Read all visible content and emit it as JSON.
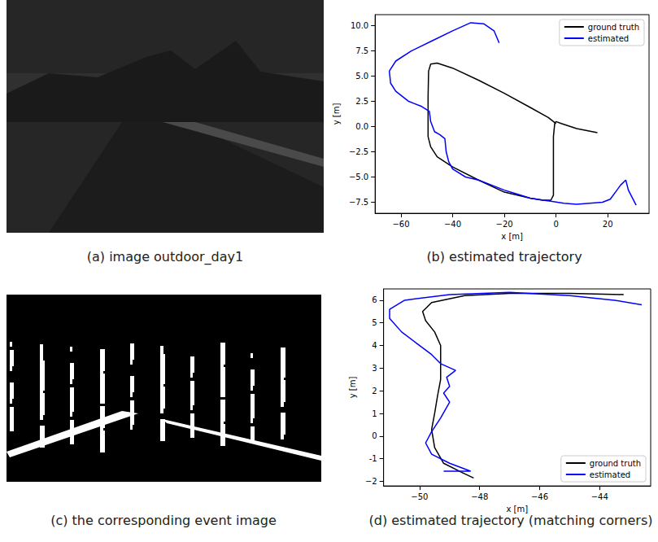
{
  "images": [
    {
      "caption": "(a) image outdoor_day1"
    },
    {
      "caption": "(c) the corresponding event image"
    }
  ],
  "chart_data": [
    {
      "type": "line",
      "caption": "(b) estimated trajectory",
      "xlabel": "x [m]",
      "ylabel": "y [m]",
      "xlim": [
        -70,
        36
      ],
      "ylim": [
        -8.6,
        11.1
      ],
      "xticks": [
        {
          "value": -60,
          "label": "−60"
        },
        {
          "value": -40,
          "label": "−40"
        },
        {
          "value": -20,
          "label": "−20"
        },
        0,
        20
      ],
      "yticks": [
        {
          "value": -7.5,
          "label": "−7.5"
        },
        {
          "value": -5,
          "label": "−5.0"
        },
        {
          "value": -2.5,
          "label": "−2.5"
        },
        {
          "value": 0,
          "label": "0.0"
        },
        2.5,
        {
          "value": 5,
          "label": "5.0"
        },
        7.5,
        {
          "value": 10,
          "label": "10.0"
        }
      ],
      "grid": false,
      "legend": "upper right",
      "series": [
        {
          "name": "ground truth",
          "color": "#000000",
          "x": [
            16,
            8,
            2,
            0,
            -0.5,
            -1,
            -1,
            -1,
            -1,
            -2,
            -5,
            -10,
            -20,
            -30,
            -40,
            -46,
            -48.5,
            -49.5,
            -49.5,
            -49.5,
            -49.3,
            -48.5,
            -46,
            -40,
            -30,
            -20,
            -10,
            -3,
            -1,
            0
          ],
          "y": [
            -0.6,
            -0.2,
            0.3,
            0.5,
            0.3,
            -1,
            -3,
            -5,
            -6.8,
            -7.3,
            -7.3,
            -7.1,
            -6.5,
            -5.3,
            -4.0,
            -3.0,
            -2,
            -1,
            1,
            3,
            5.5,
            6.2,
            6.3,
            5.8,
            4.6,
            3.3,
            1.9,
            0.9,
            0.5,
            0.3
          ]
        },
        {
          "name": "estimated",
          "color": "#0000ff",
          "x": [
            -22,
            -24,
            -28,
            -33,
            -40,
            -48,
            -56,
            -62,
            -64.5,
            -64,
            -62,
            -57,
            -52,
            -49,
            -48.5,
            -47,
            -45,
            -43,
            -42.5,
            -41.5,
            -40,
            -35,
            -30,
            -25,
            -20,
            -15,
            -10,
            -5,
            -2,
            3,
            8,
            13,
            18,
            21,
            23,
            25,
            27,
            28,
            31
          ],
          "y": [
            8.3,
            9.5,
            10.2,
            10.3,
            9.5,
            8.5,
            7.5,
            6.5,
            5.5,
            4.3,
            3.5,
            2.5,
            2,
            1.5,
            0.5,
            -0.5,
            -0.8,
            -1.2,
            -2.5,
            -3.5,
            -4.2,
            -5,
            -5.3,
            -5.8,
            -6.3,
            -6.7,
            -7.1,
            -7.3,
            -7.4,
            -7.6,
            -7.7,
            -7.6,
            -7.5,
            -7.2,
            -6.5,
            -5.8,
            -5.3,
            -6.3,
            -7.8
          ]
        }
      ]
    },
    {
      "type": "line",
      "caption": "(d) estimated trajectory (matching corners)",
      "xlabel": "x [m]",
      "ylabel": "y [m]",
      "xlim": [
        -51.2,
        -42.3
      ],
      "ylim": [
        -2.2,
        6.5
      ],
      "xticks": [
        {
          "value": -50,
          "label": "−50"
        },
        {
          "value": -48,
          "label": "−48"
        },
        {
          "value": -46,
          "label": "−46"
        },
        {
          "value": -44,
          "label": "−44"
        }
      ],
      "yticks": [
        {
          "value": -2,
          "label": "−2"
        },
        -1,
        0,
        1,
        2,
        3,
        4,
        5,
        6
      ],
      "grid": false,
      "legend": "lower right",
      "series": [
        {
          "name": "ground truth",
          "color": "#000000",
          "x": [
            -48.2,
            -48.6,
            -49.2,
            -49.5,
            -49.6,
            -49.5,
            -49.4,
            -49.3,
            -49.3,
            -49.3,
            -49.5,
            -49.8,
            -49.9,
            -49.6,
            -48.5,
            -47,
            -45,
            -43.2
          ],
          "y": [
            -1.85,
            -1.6,
            -1.2,
            -0.5,
            0.3,
            1,
            1.8,
            2.5,
            3.3,
            4,
            4.6,
            5.1,
            5.5,
            5.9,
            6.2,
            6.3,
            6.3,
            6.25
          ]
        },
        {
          "name": "estimated",
          "color": "#0000ff",
          "x": [
            -49.2,
            -48.3,
            -49,
            -49.6,
            -49.8,
            -49.6,
            -49.3,
            -49.0,
            -49.2,
            -49,
            -49.1,
            -48.8,
            -49.3,
            -49.6,
            -50.1,
            -50.6,
            -51.0,
            -51.0,
            -50.5,
            -49,
            -47,
            -45,
            -43.5,
            -42.6
          ],
          "y": [
            -1.55,
            -1.55,
            -1.2,
            -0.8,
            -0.3,
            0.2,
            0.8,
            1.5,
            1.9,
            2.2,
            2.6,
            2.9,
            3.2,
            3.6,
            4.1,
            4.6,
            5.2,
            5.6,
            6.0,
            6.25,
            6.35,
            6.2,
            6.0,
            5.8
          ]
        }
      ]
    }
  ]
}
